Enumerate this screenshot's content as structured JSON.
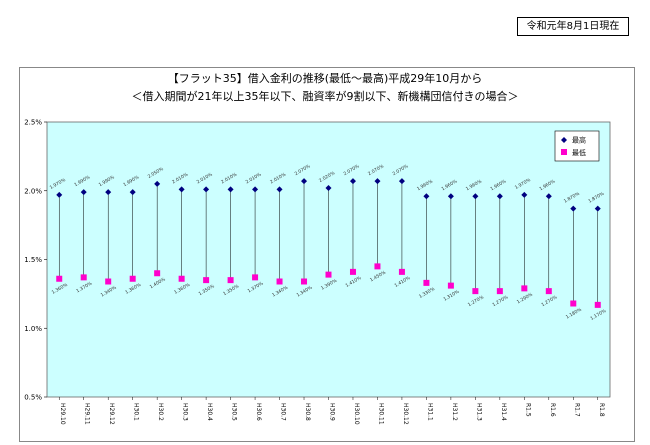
{
  "header": {
    "date_label": "令和元年8月1日現在"
  },
  "chart_data": {
    "type": "scatter",
    "title": "【フラット35】借入金利の推移(最低～最高)平成29年10月から",
    "subtitle": "＜借入期間が21年以上35年以下、融資率が9割以下、新機構団信付きの場合＞",
    "categories": [
      "H29.10",
      "H29.11",
      "H29.12",
      "H30.1",
      "H30.2",
      "H30.3",
      "H30.4",
      "H30.5",
      "H30.6",
      "H30.7",
      "H30.8",
      "H30.9",
      "H30.10",
      "H30.11",
      "H30.12",
      "H31.1",
      "H31.2",
      "H31.3",
      "H31.4",
      "R1.5",
      "R1.6",
      "R1.7",
      "R1.8"
    ],
    "series": [
      {
        "name": "最高",
        "color": "#000080",
        "marker": "diamond",
        "values": [
          1.97,
          1.99,
          1.99,
          1.99,
          2.05,
          2.01,
          2.01,
          2.01,
          2.01,
          2.01,
          2.07,
          2.02,
          2.07,
          2.07,
          2.07,
          1.96,
          1.96,
          1.96,
          1.96,
          1.97,
          1.96,
          1.87,
          1.87
        ],
        "labels": [
          "1.970%",
          "1.990%",
          "1.990%",
          "1.990%",
          "2.050%",
          "2.010%",
          "2.010%",
          "2.010%",
          "2.010%",
          "2.010%",
          "2.070%",
          "2.020%",
          "2.070%",
          "2.070%",
          "2.070%",
          "1.960%",
          "1.960%",
          "1.960%",
          "1.960%",
          "1.970%",
          "1.960%",
          "1.870%",
          "1.870%"
        ]
      },
      {
        "name": "最低",
        "color": "#ff00cc",
        "marker": "square",
        "values": [
          1.36,
          1.37,
          1.34,
          1.36,
          1.4,
          1.36,
          1.35,
          1.35,
          1.37,
          1.34,
          1.34,
          1.39,
          1.41,
          1.45,
          1.41,
          1.33,
          1.31,
          1.27,
          1.27,
          1.29,
          1.27,
          1.18,
          1.17
        ],
        "labels": [
          "1.360%",
          "1.370%",
          "1.340%",
          "1.360%",
          "1.400%",
          "1.360%",
          "1.350%",
          "1.350%",
          "1.370%",
          "1.340%",
          "1.340%",
          "1.390%",
          "1.410%",
          "1.450%",
          "1.410%",
          "1.330%",
          "1.310%",
          "1.270%",
          "1.270%",
          "1.290%",
          "1.270%",
          "1.180%",
          "1.170%"
        ]
      }
    ],
    "yticks": [
      "0.5%",
      "1.0%",
      "1.5%",
      "2.0%",
      "2.5%"
    ],
    "ylim": [
      0.5,
      2.5
    ],
    "grid": false,
    "legend": "top-right",
    "plot_bg": "#ccffff"
  }
}
